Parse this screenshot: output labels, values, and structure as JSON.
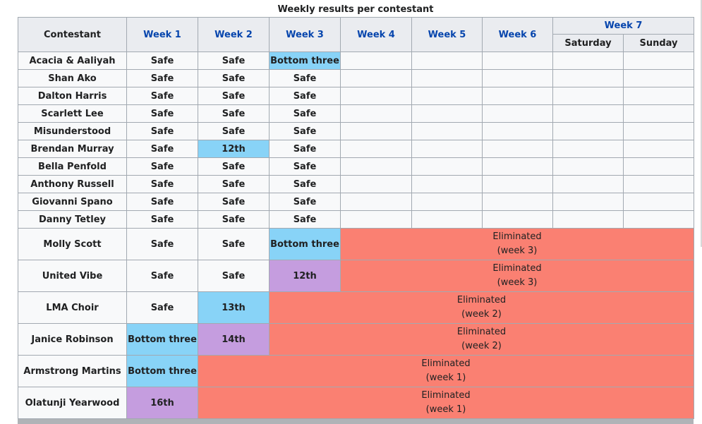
{
  "caption": "Weekly results per contestant",
  "headers": {
    "contestant": "Contestant",
    "weeks": [
      "Week 1",
      "Week 2",
      "Week 3",
      "Week 4",
      "Week 5",
      "Week 6",
      "Week 7"
    ],
    "week7_days": [
      "Saturday",
      "Sunday"
    ]
  },
  "active": [
    {
      "name": "Acacia & Aaliyah",
      "results": [
        "Safe",
        "Safe",
        "Bottom three"
      ]
    },
    {
      "name": "Shan Ako",
      "results": [
        "Safe",
        "Safe",
        "Safe"
      ]
    },
    {
      "name": "Dalton Harris",
      "results": [
        "Safe",
        "Safe",
        "Safe"
      ]
    },
    {
      "name": "Scarlett Lee",
      "results": [
        "Safe",
        "Safe",
        "Safe"
      ]
    },
    {
      "name": "Misunderstood",
      "results": [
        "Safe",
        "Safe",
        "Safe"
      ]
    },
    {
      "name": "Brendan Murray",
      "results": [
        "Safe",
        "12th",
        "Safe"
      ]
    },
    {
      "name": "Bella Penfold",
      "results": [
        "Safe",
        "Safe",
        "Safe"
      ]
    },
    {
      "name": "Anthony Russell",
      "results": [
        "Safe",
        "Safe",
        "Safe"
      ]
    },
    {
      "name": "Giovanni Spano",
      "results": [
        "Safe",
        "Safe",
        "Safe"
      ]
    },
    {
      "name": "Danny Tetley",
      "results": [
        "Safe",
        "Safe",
        "Safe"
      ]
    }
  ],
  "eliminated": [
    {
      "name": "Molly Scott",
      "results": [
        "Safe",
        "Safe",
        "Bottom three"
      ],
      "elim_line1": "Eliminated",
      "elim_line2": "(week 3)"
    },
    {
      "name": "United Vibe",
      "results": [
        "Safe",
        "Safe",
        "12th"
      ],
      "elim_line1": "Eliminated",
      "elim_line2": "(week 3)"
    },
    {
      "name": "LMA Choir",
      "results": [
        "Safe",
        "13th"
      ],
      "elim_line1": "Eliminated",
      "elim_line2": "(week 2)"
    },
    {
      "name": "Janice Robinson",
      "results": [
        "Bottom three",
        "14th"
      ],
      "elim_line1": "Eliminated",
      "elim_line2": "(week 2)"
    },
    {
      "name": "Armstrong Martins",
      "results": [
        "Bottom three"
      ],
      "elim_line1": "Eliminated",
      "elim_line2": "(week 1)"
    },
    {
      "name": "Olatunji Yearwood",
      "results": [
        "16th"
      ],
      "elim_line1": "Eliminated",
      "elim_line2": "(week 1)"
    }
  ],
  "colors": {
    "bottom_three": "#88d3f7",
    "rank": "#c59ddf",
    "eliminated": "#fa8072",
    "header_bg": "#eaecf0",
    "cell_bg": "#f8f9fa"
  }
}
